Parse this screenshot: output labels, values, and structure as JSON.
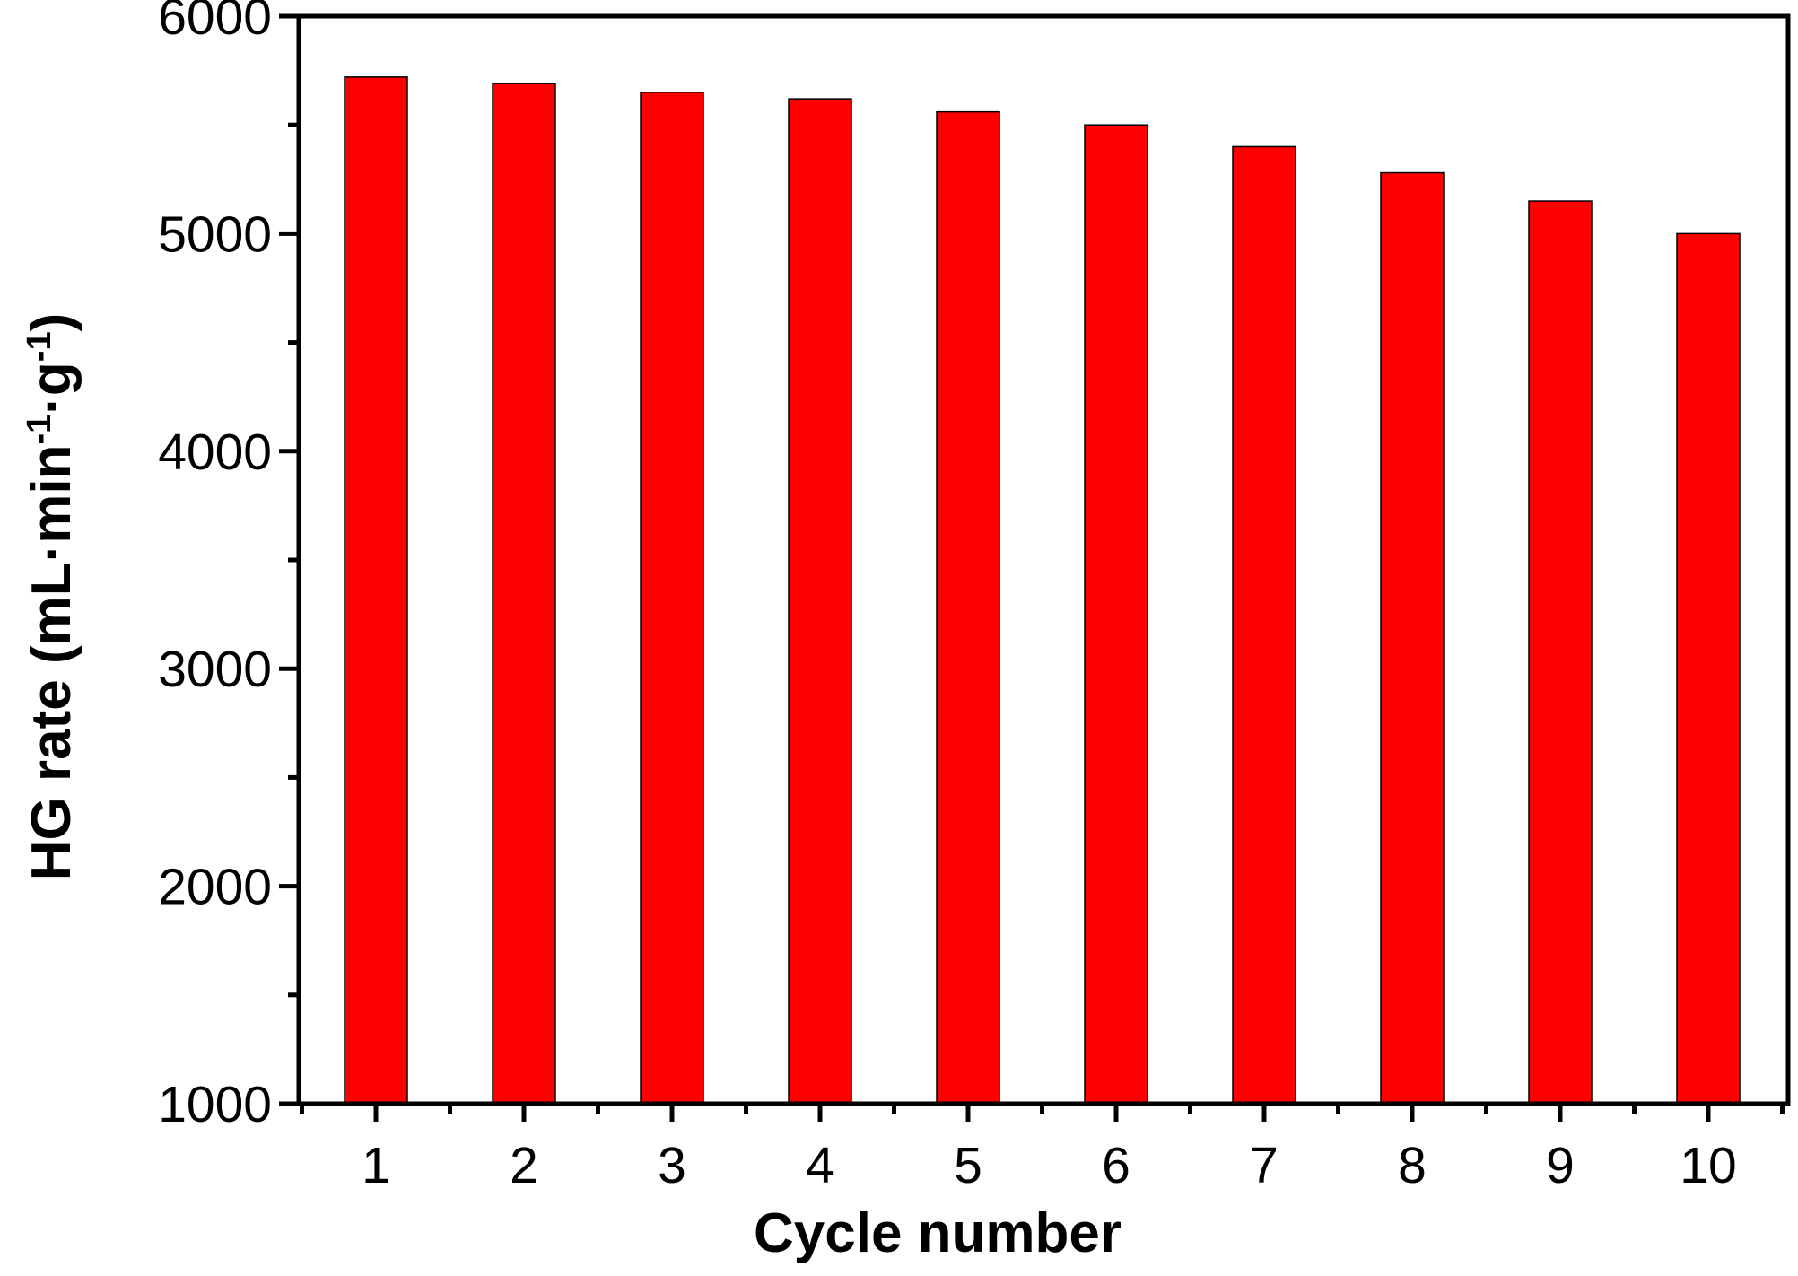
{
  "chart_data": {
    "type": "bar",
    "categories": [
      "1",
      "2",
      "3",
      "4",
      "5",
      "6",
      "7",
      "8",
      "9",
      "10"
    ],
    "values": [
      5720,
      5690,
      5650,
      5620,
      5560,
      5500,
      5400,
      5280,
      5150,
      5000
    ],
    "xlabel": "Cycle number",
    "ylabel": {
      "main": "HG rate (mL·min",
      "sup1": "-1",
      "mid": "·g",
      "sup2": "-1",
      "end": ")"
    },
    "ylim": [
      1000,
      6000
    ],
    "yticks": [
      "1000",
      "2000",
      "3000",
      "4000",
      "5000",
      "6000"
    ],
    "grid": false,
    "legend": false,
    "colors": {
      "bar": "#ff0000",
      "bar_edge": "#000000",
      "axis": "#000000"
    }
  }
}
